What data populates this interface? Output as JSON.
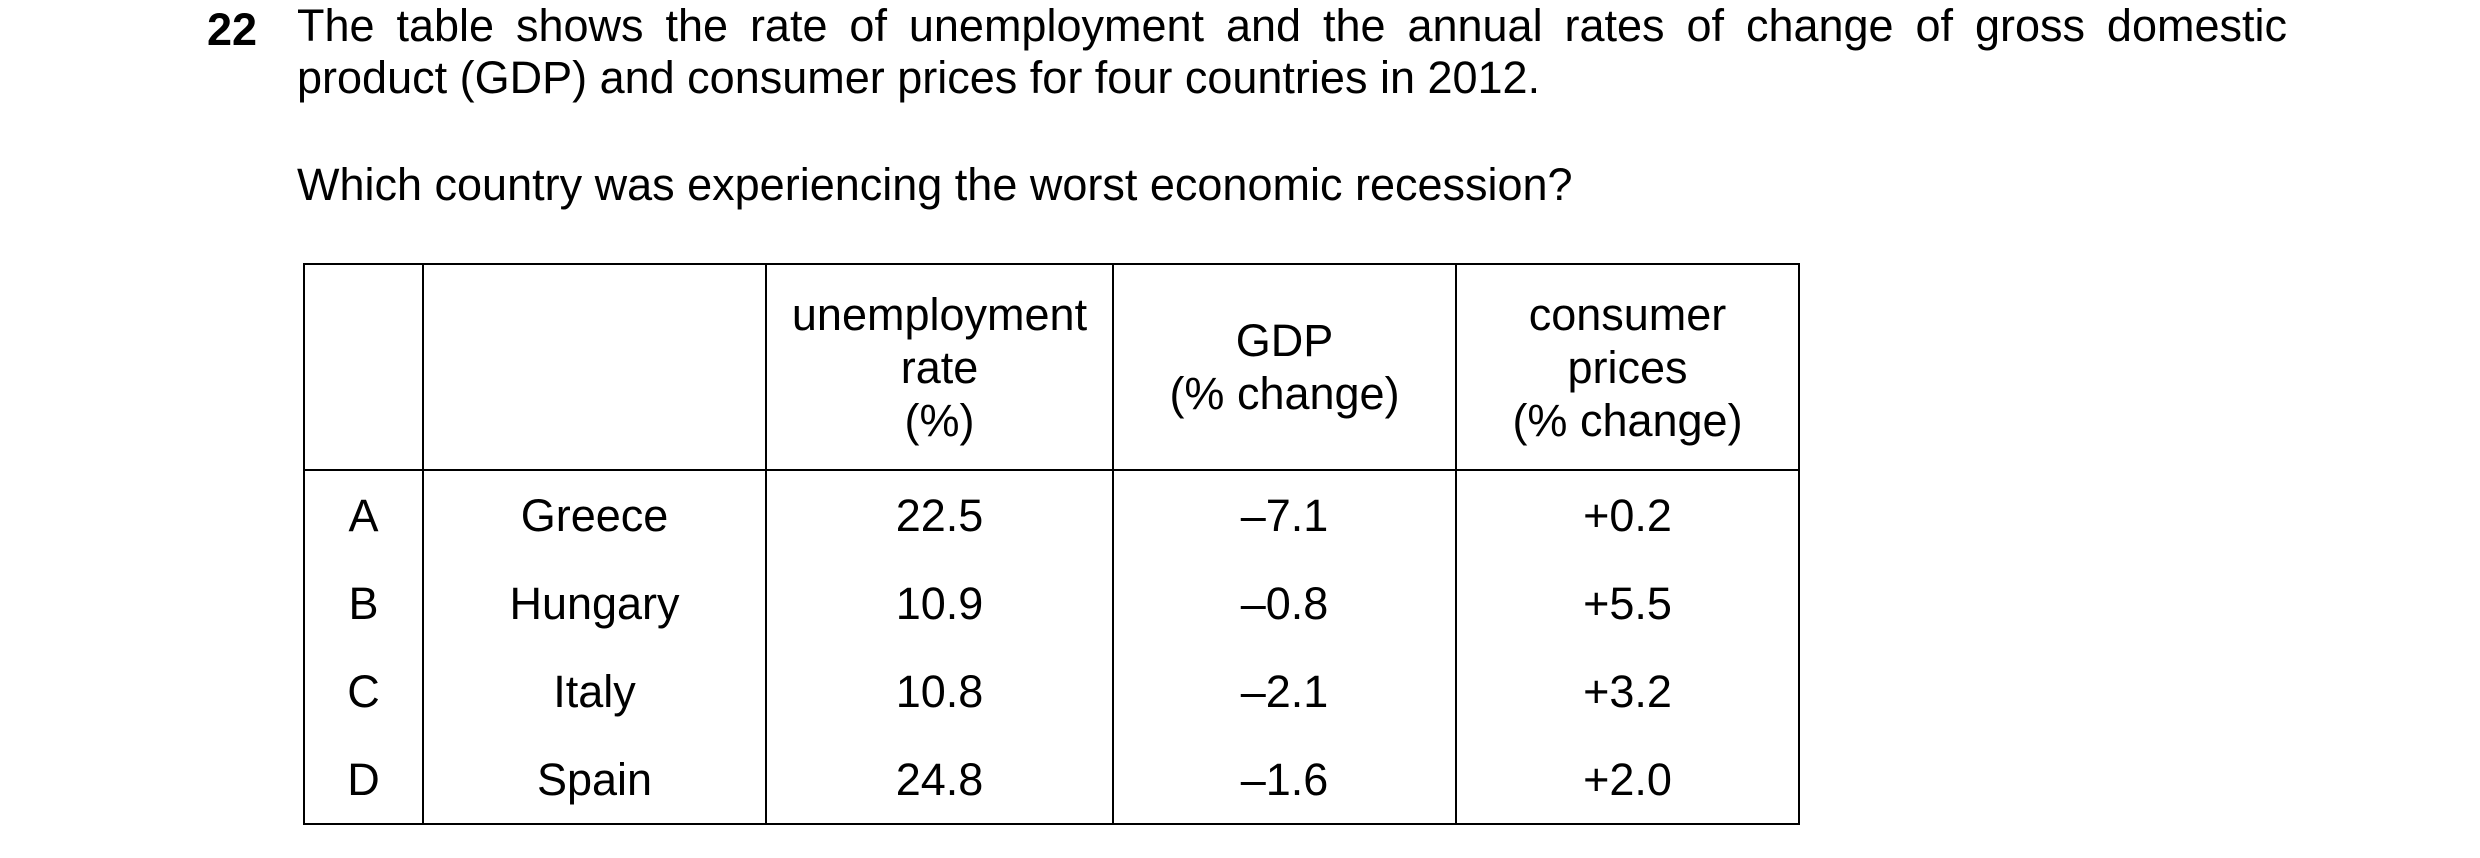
{
  "question": {
    "number": "22",
    "stem_line_1": "The table shows the rate of unemployment and the annual rates of change of gross domestic",
    "stem_line_2": "product (GDP) and consumer prices for four countries in 2012.",
    "prompt": "Which country was experiencing the worst economic recession?"
  },
  "table": {
    "headers": {
      "letter": "",
      "country": "",
      "unemployment": [
        "unemployment",
        "rate",
        "(%)"
      ],
      "gdp": [
        "GDP",
        "(% change)"
      ],
      "consumer_prices": [
        "consumer",
        "prices",
        "(% change)"
      ]
    },
    "rows": [
      {
        "letter": "A",
        "country": "Greece",
        "unemployment": "22.5",
        "gdp": "–7.1",
        "consumer_prices": "+0.2"
      },
      {
        "letter": "B",
        "country": "Hungary",
        "unemployment": "10.9",
        "gdp": "–0.8",
        "consumer_prices": "+5.5"
      },
      {
        "letter": "C",
        "country": "Italy",
        "unemployment": "10.8",
        "gdp": "–2.1",
        "consumer_prices": "+3.2"
      },
      {
        "letter": "D",
        "country": "Spain",
        "unemployment": "24.8",
        "gdp": "–1.6",
        "consumer_prices": "+2.0"
      }
    ]
  }
}
